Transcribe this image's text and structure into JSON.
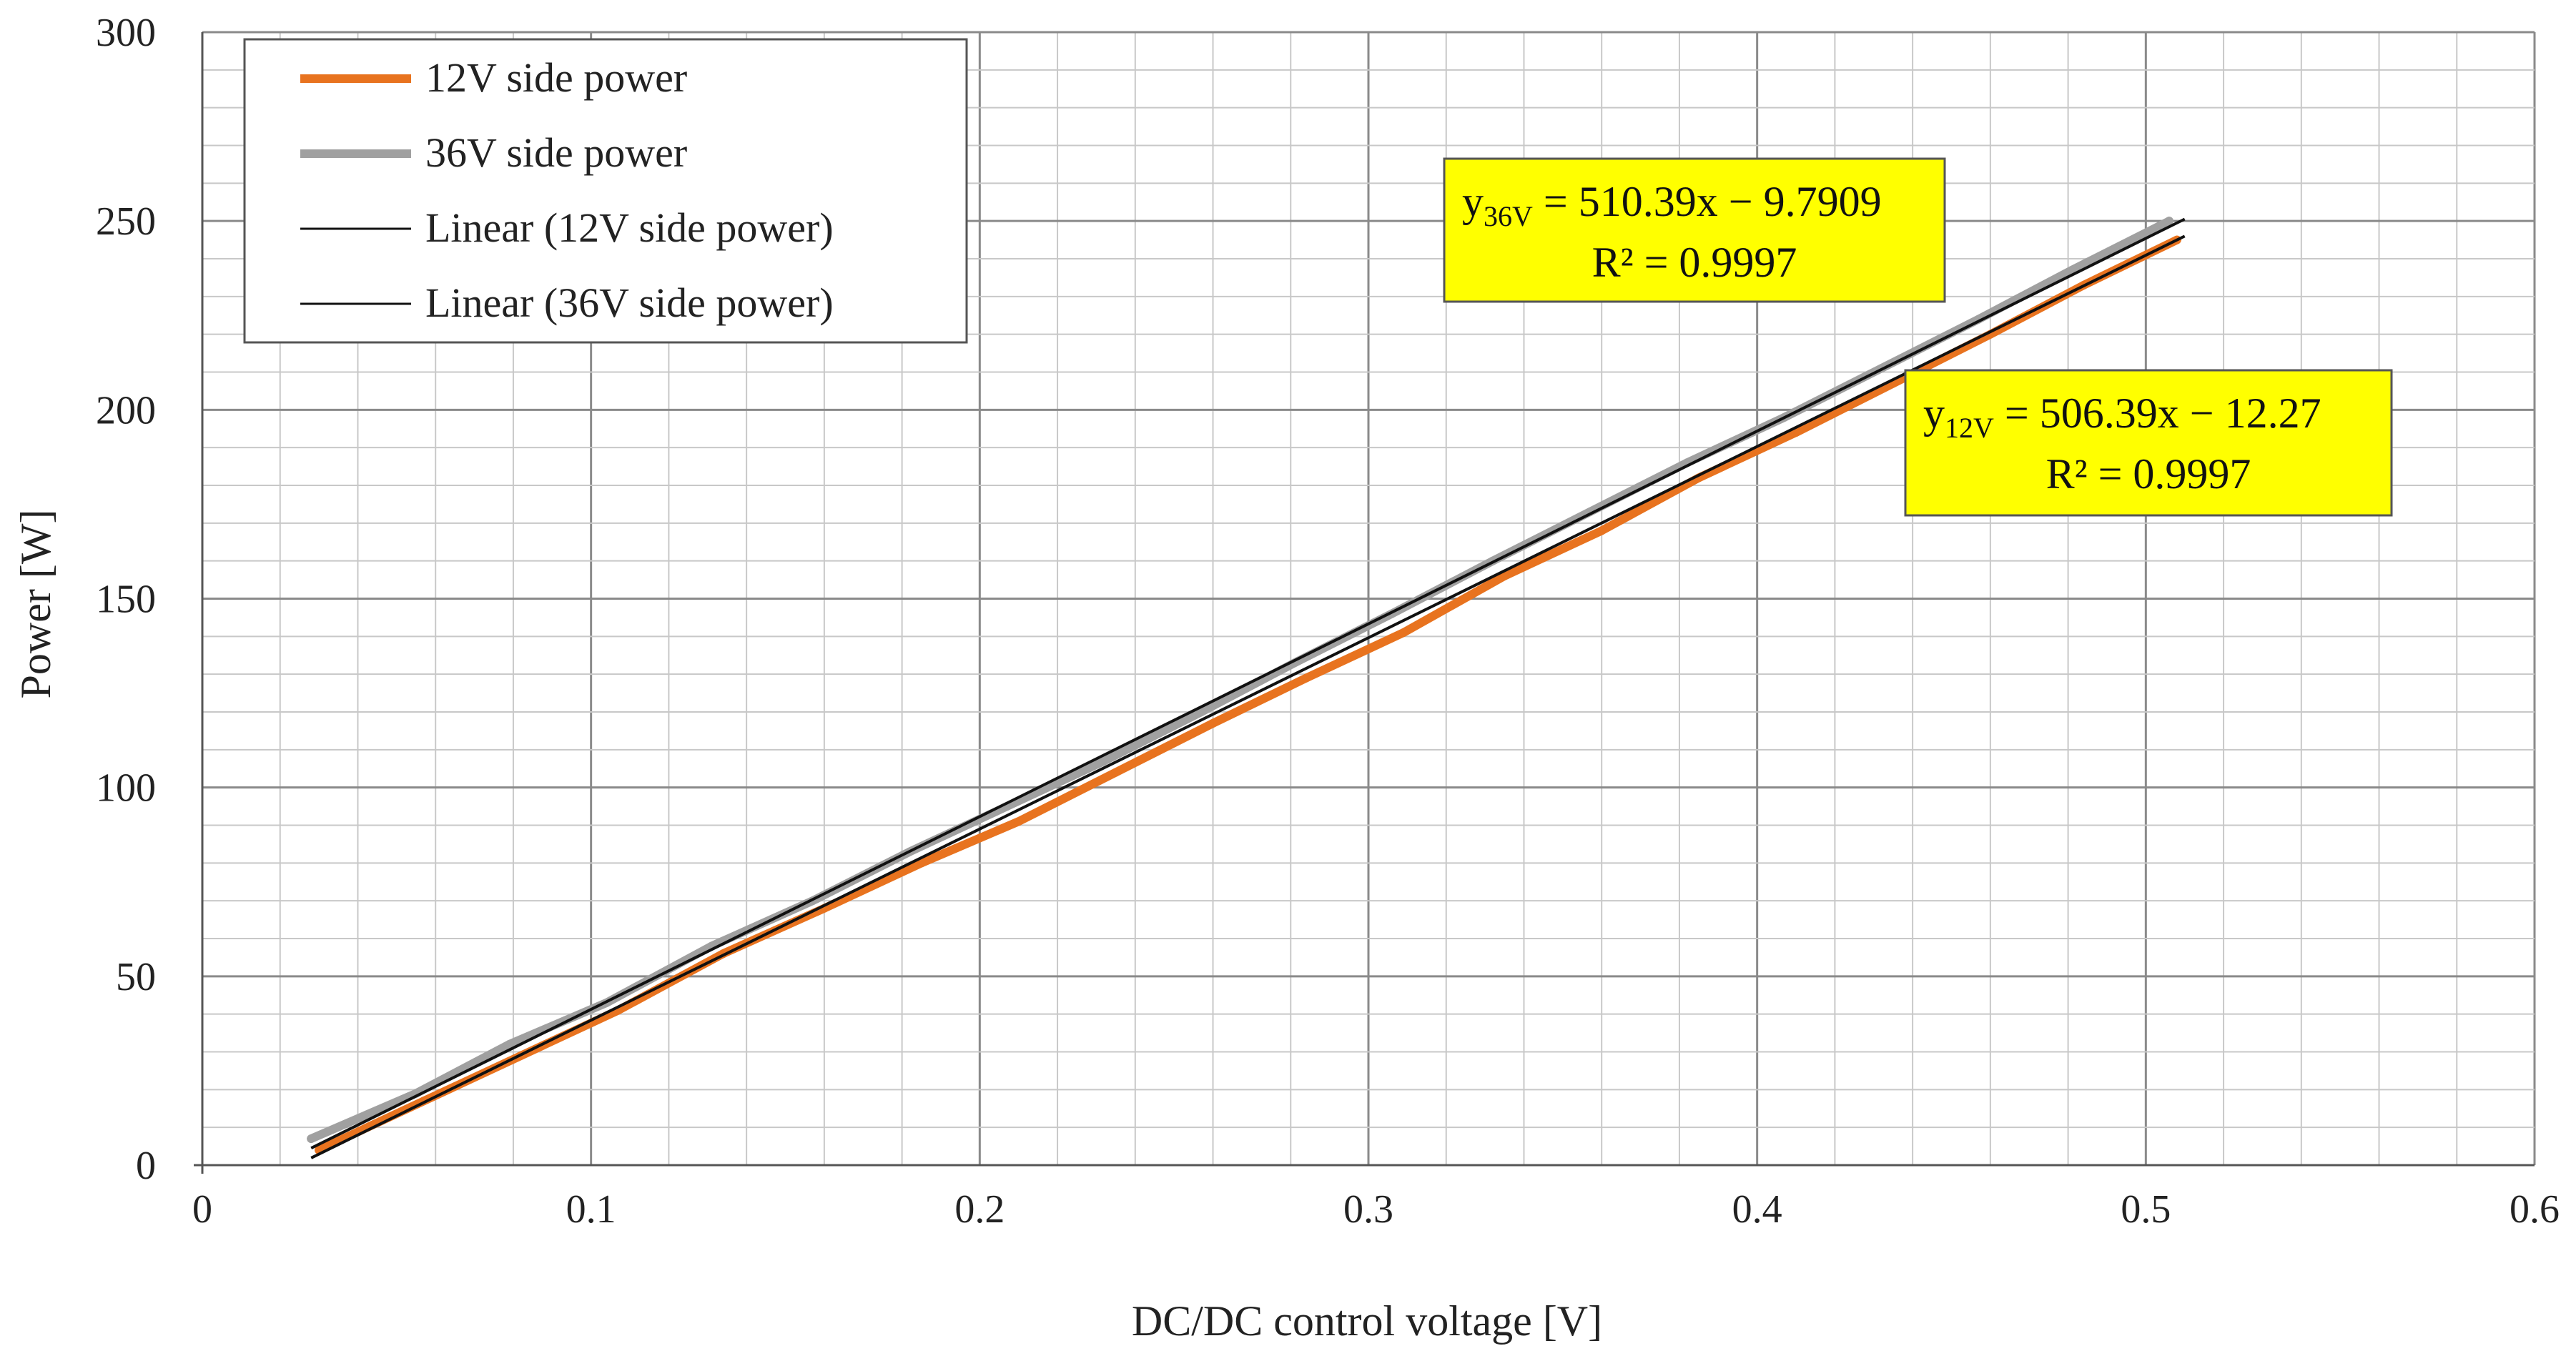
{
  "chart_data": {
    "type": "line",
    "xlabel": "DC/DC control voltage [V]",
    "ylabel": "Power [W]",
    "xlim": [
      0,
      0.6
    ],
    "ylim": [
      0,
      300
    ],
    "x_ticks": [
      "0",
      "0.1",
      "0.2",
      "0.3",
      "0.4",
      "0.5",
      "0.6"
    ],
    "y_ticks": [
      "0",
      "50",
      "100",
      "150",
      "200",
      "250",
      "300"
    ],
    "grid": "major and minor",
    "legend_position": "top-left",
    "series": [
      {
        "name": "12V side power",
        "color": "#E8731F",
        "x": [
          0.03,
          0.057,
          0.082,
          0.107,
          0.134,
          0.16,
          0.185,
          0.21,
          0.235,
          0.26,
          0.284,
          0.309,
          0.335,
          0.36,
          0.385,
          0.41,
          0.435,
          0.46,
          0.484,
          0.508
        ],
        "y": [
          4,
          17,
          29,
          41,
          56,
          68,
          80,
          91,
          104,
          117,
          129,
          141,
          156,
          168,
          182,
          194,
          207,
          220,
          233,
          245
        ]
      },
      {
        "name": "36V side power",
        "color": "#A0A0A0",
        "x": [
          0.028,
          0.055,
          0.079,
          0.104,
          0.131,
          0.157,
          0.182,
          0.207,
          0.232,
          0.257,
          0.281,
          0.306,
          0.332,
          0.357,
          0.382,
          0.407,
          0.432,
          0.457,
          0.481,
          0.506
        ],
        "y": [
          7,
          19,
          32,
          43,
          58,
          70,
          83,
          95,
          107,
          120,
          133,
          146,
          160,
          173,
          186,
          198,
          211,
          224,
          237,
          250
        ]
      },
      {
        "name": "Linear (12V side power)",
        "color": "#111111",
        "type": "trendline",
        "slope": 506.39,
        "intercept": -12.27,
        "x_range": [
          0.028,
          0.51
        ]
      },
      {
        "name": "Linear (36V side power)",
        "color": "#111111",
        "type": "trendline",
        "slope": 510.39,
        "intercept": -9.7909,
        "x_range": [
          0.028,
          0.51
        ]
      }
    ],
    "annotations": [
      {
        "line1_prefix": "y",
        "line1_sub": "36V",
        "line1_rest": " = 510.39x − 9.7909",
        "line2": "R² = 0.9997",
        "background": "#FFFF00"
      },
      {
        "line1_prefix": "y",
        "line1_sub": "12V",
        "line1_rest": "  = 506.39x − 12.27",
        "line2": "R² = 0.9997",
        "background": "#FFFF00"
      }
    ]
  }
}
